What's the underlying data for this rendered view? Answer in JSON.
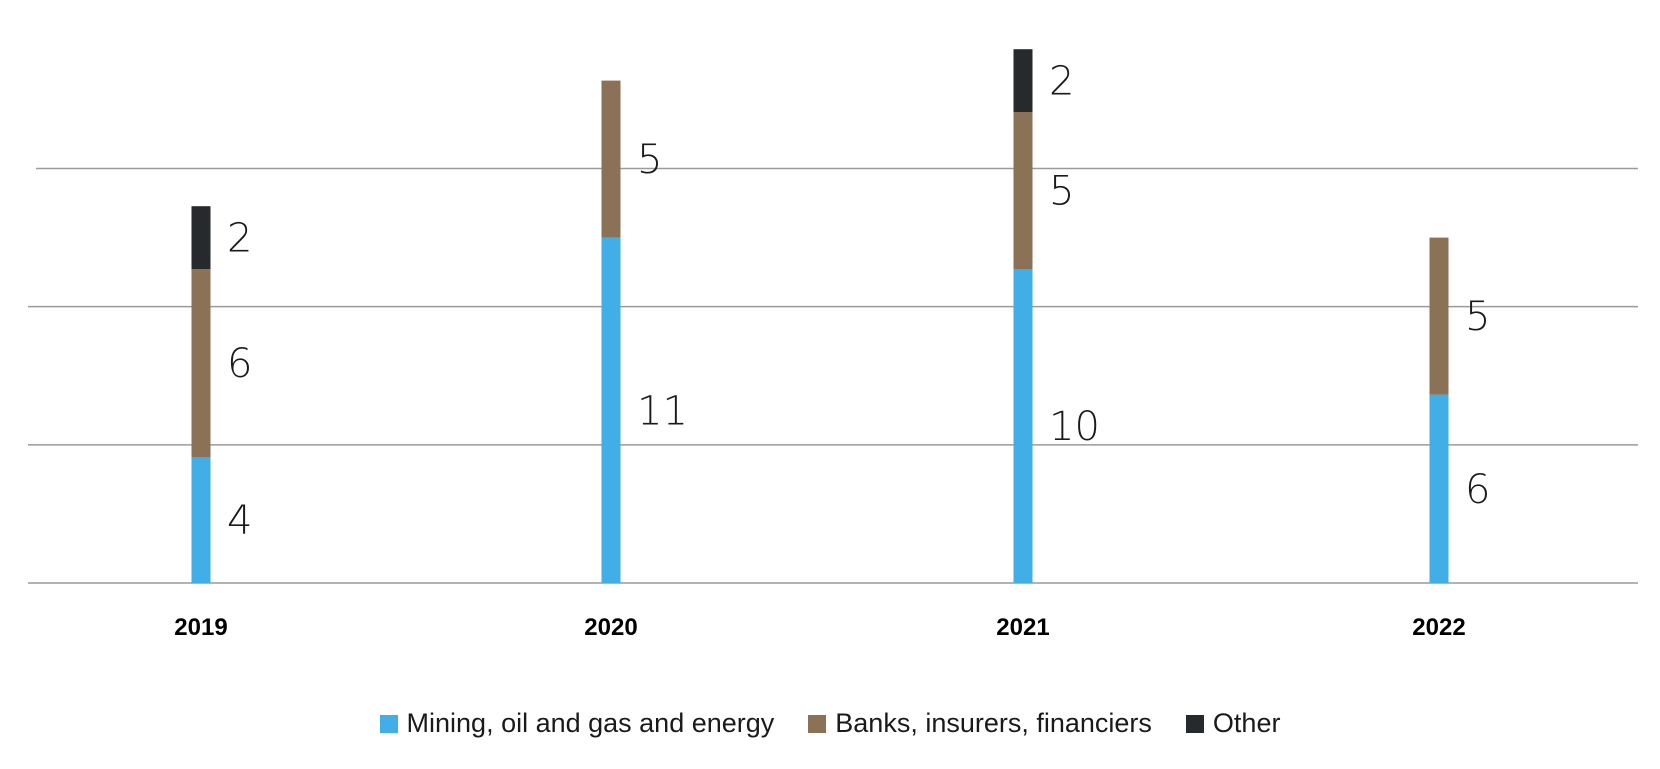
{
  "chart_data": {
    "type": "bar",
    "stacked": true,
    "categories": [
      "2019",
      "2020",
      "2021",
      "2022"
    ],
    "series": [
      {
        "name": "Mining, oil and gas and energy",
        "color": "#41aee8",
        "values": [
          4,
          11,
          10,
          6
        ]
      },
      {
        "name": "Banks, insurers, financiers",
        "color": "#8b7155",
        "values": [
          6,
          5,
          5,
          5
        ]
      },
      {
        "name": "Other",
        "color": "#272a2d",
        "values": [
          2,
          0,
          2,
          0
        ]
      }
    ],
    "ylim": [
      0,
      17
    ],
    "gridlines": [
      0,
      4.4,
      8.8,
      13.2
    ],
    "grid": true,
    "legend_position": "bottom",
    "title": "",
    "xlabel": "",
    "ylabel": ""
  }
}
